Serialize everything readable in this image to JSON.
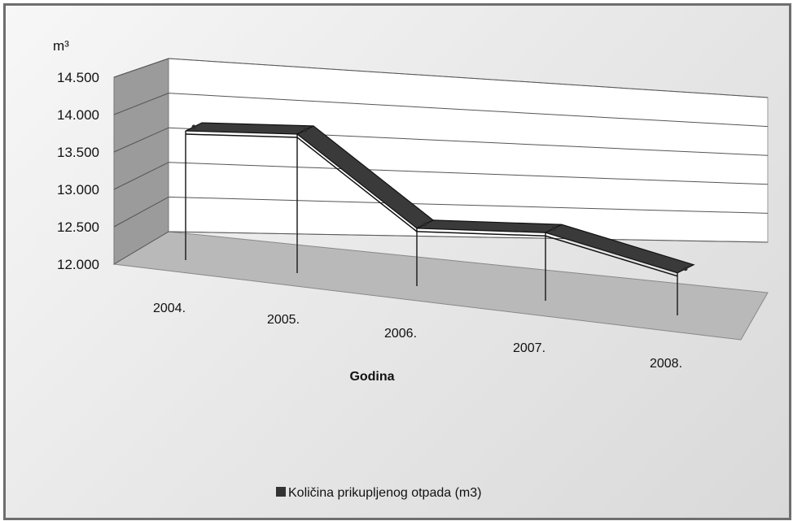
{
  "chart_data": {
    "type": "line",
    "categories": [
      "2004.",
      "2005.",
      "2006.",
      "2007.",
      "2008."
    ],
    "series": [
      {
        "name": "Količina prikupljenog otpada (m3)",
        "values": [
          14150,
          14200,
          12850,
          12850,
          12250
        ]
      }
    ],
    "ylim": [
      12000,
      14500
    ],
    "yticks": [
      "12.000",
      "12.500",
      "13.000",
      "13.500",
      "14.000",
      "14.500"
    ],
    "yunit": "m³",
    "xlabel": "Godina",
    "grid": true,
    "three_d": true,
    "legend_position": "bottom",
    "colors": {
      "series": "#3a3a3a",
      "series_top": "#2b2b2b",
      "grid": "#555555"
    }
  }
}
